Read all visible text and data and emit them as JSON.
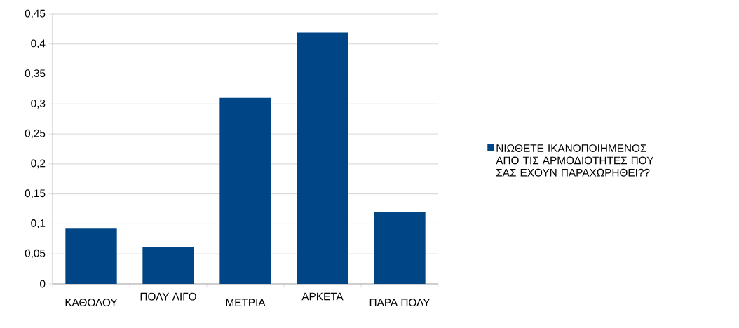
{
  "chart_data": {
    "type": "bar",
    "categories": [
      "ΚΑΘΟΛΟΥ",
      "ΠΟΛΥ ΛΙΓΟ",
      "ΜΕΤΡΙΑ",
      "ΑΡΚΕΤΑ",
      "ΠΑΡΑ ΠΟΛΥ"
    ],
    "series": [
      {
        "name": "ΝΙΩΘΕΤΕ ΙΚΑΝΟΠΟΙΗΜΕΝΟΣ ΑΠΟ ΤΙΣ ΑΡΜΟΔΙΟΤΗΤΕΣ ΠΟΥ ΣΑΣ ΕΧΟΥΝ ΠΑΡΑΧΩΡΗΘΕΙ??",
        "color": "#004586",
        "values": [
          0.092,
          0.062,
          0.31,
          0.419,
          0.12
        ]
      }
    ],
    "ylim": [
      0,
      0.45
    ],
    "yticks": [
      0,
      {
        "value": 0.05,
        "label": "0,05"
      },
      {
        "value": 0.1,
        "label": "0,1"
      },
      {
        "value": 0.15,
        "label": "0,15"
      },
      {
        "value": 0.2,
        "label": "0,2"
      },
      {
        "value": 0.25,
        "label": "0,25"
      },
      {
        "value": 0.3,
        "label": "0,3"
      },
      {
        "value": 0.35,
        "label": "0,35"
      },
      {
        "value": 0.4,
        "label": "0,4"
      },
      {
        "value": 0.45,
        "label": "0,45"
      }
    ],
    "grid": "y",
    "legend": "right"
  }
}
